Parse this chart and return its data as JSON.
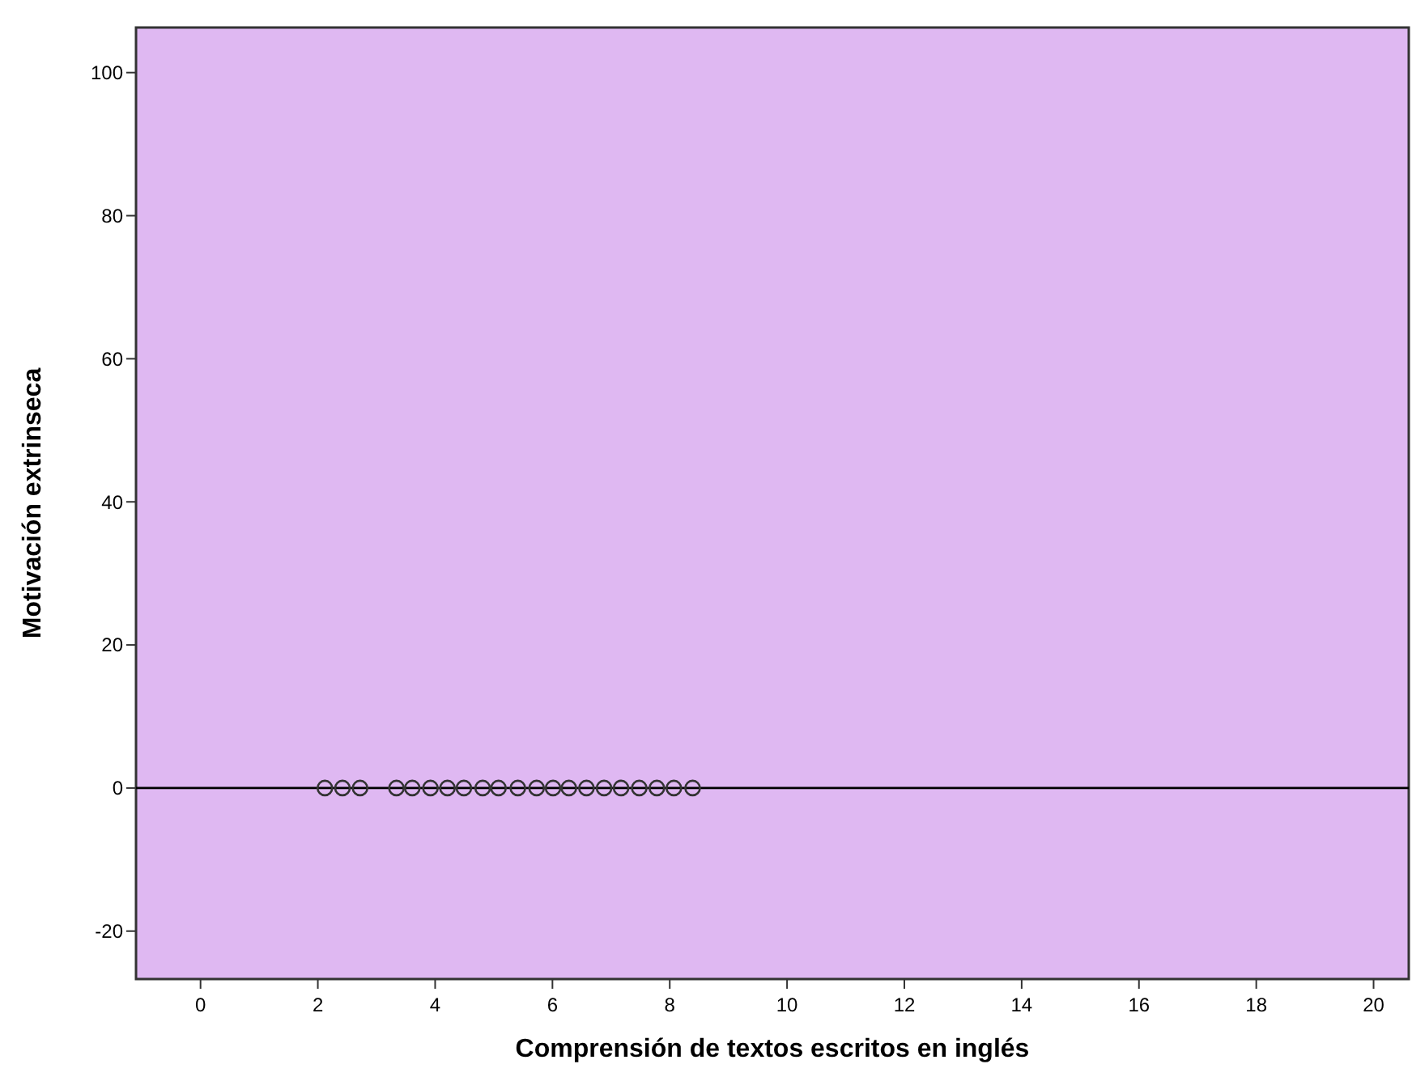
{
  "chart_data": {
    "type": "scatter",
    "xlabel": "Comprensión de textos escritos en inglés",
    "ylabel": "Motivación extrinseca",
    "x": [
      2.12,
      2.42,
      2.72,
      3.34,
      3.61,
      3.92,
      4.21,
      4.49,
      4.81,
      5.08,
      5.41,
      5.73,
      6.01,
      6.28,
      6.58,
      6.88,
      7.17,
      7.48,
      7.78,
      8.07,
      8.39
    ],
    "values": [
      0,
      0,
      0,
      0,
      0,
      0,
      0,
      0,
      0,
      0,
      0,
      0,
      0,
      0,
      0,
      0,
      0,
      0,
      0,
      0,
      0
    ],
    "color": "#333333",
    "marker": "circle",
    "xlim": [
      -1.1,
      20.6
    ],
    "ylim": [
      -26.7,
      106.3
    ],
    "xticks": [
      0,
      2,
      4,
      6,
      8,
      10,
      12,
      14,
      16,
      18,
      20
    ],
    "yticks": [
      -20,
      0,
      20,
      40,
      60,
      80,
      100
    ],
    "ref_lines": [
      {
        "axis": "y",
        "value": 0,
        "color": "#000000"
      }
    ],
    "grid": false
  }
}
